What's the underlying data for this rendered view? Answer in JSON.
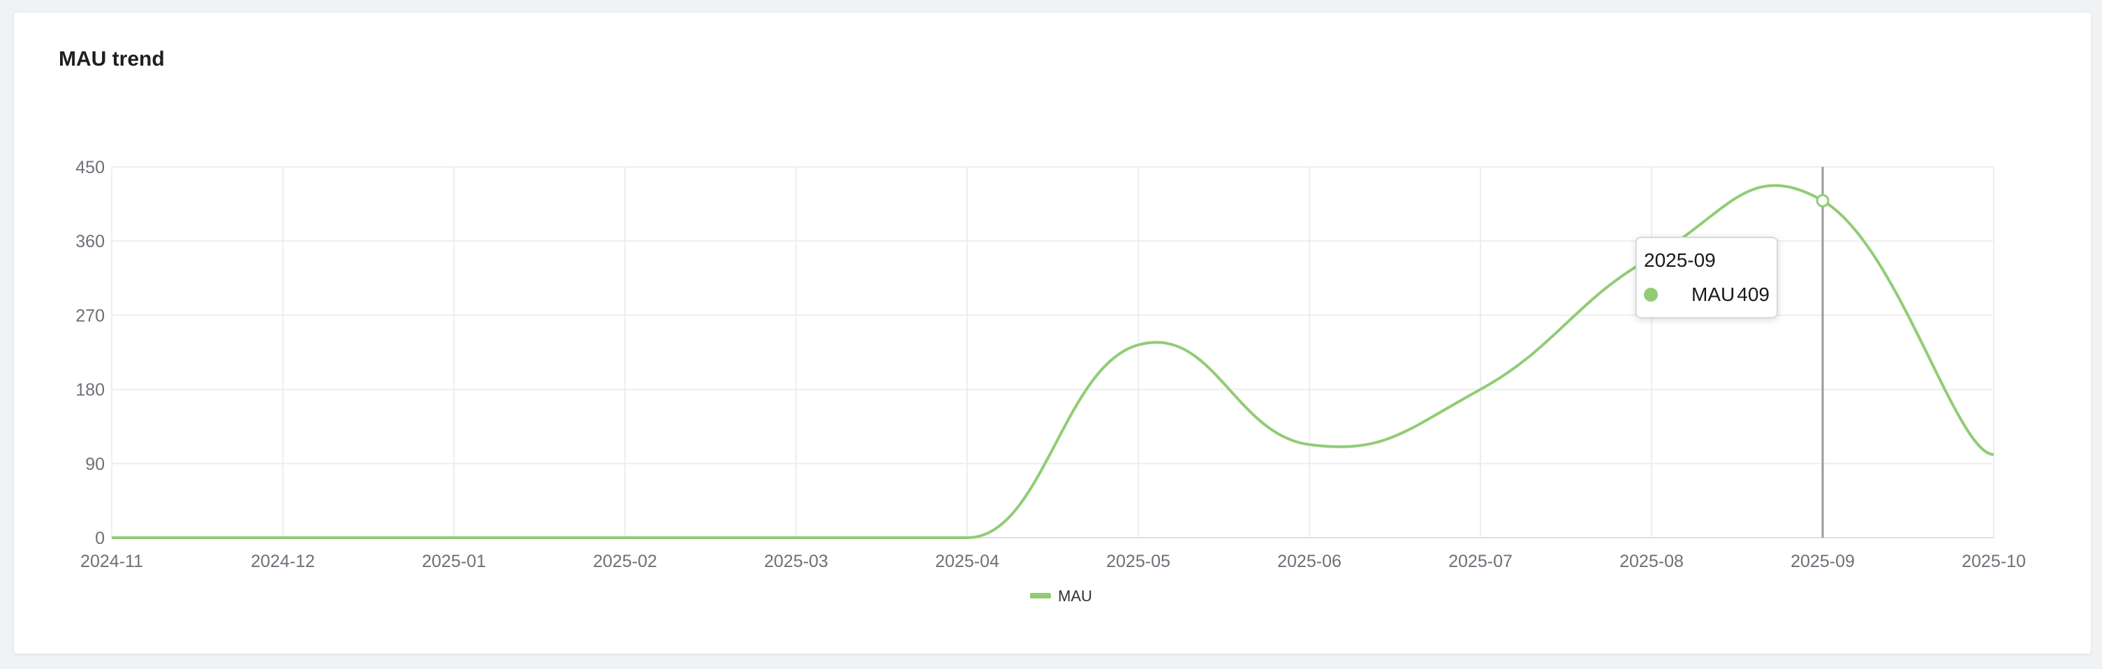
{
  "card": {
    "title": "MAU trend"
  },
  "colors": {
    "series": "#91cc75",
    "grid": "#eeeeee",
    "axis_text": "#6e7079",
    "pointer": "#999999"
  },
  "tooltip": {
    "title": "2025-09",
    "series_name": "MAU",
    "value": "409"
  },
  "chart_data": {
    "type": "line",
    "smooth": true,
    "title": "MAU trend",
    "categories": [
      "2024-11",
      "2024-12",
      "2025-01",
      "2025-02",
      "2025-03",
      "2025-04",
      "2025-05",
      "2025-06",
      "2025-07",
      "2025-08",
      "2025-09",
      "2025-10"
    ],
    "series": [
      {
        "name": "MAU",
        "values": [
          0,
          0,
          0,
          0,
          0,
          0,
          234,
          113,
          180,
          340,
          409,
          101
        ]
      }
    ],
    "ylim": [
      0,
      450
    ],
    "yticks": [
      0,
      90,
      180,
      270,
      360,
      450
    ],
    "grid": true,
    "legend_position": "bottom-center",
    "highlighted_category": "2025-09"
  }
}
